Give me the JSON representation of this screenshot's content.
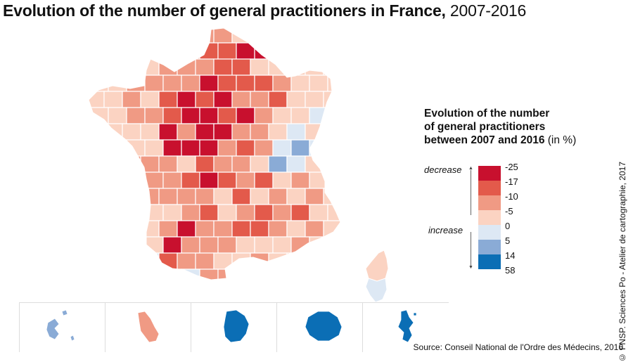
{
  "title": {
    "bold": "Evolution of the number of general practitioners in France,",
    "years": " 2007-2016"
  },
  "legend": {
    "title_line1": "Evolution of the number",
    "title_line2": "of general practitioners",
    "title_line3": "between 2007 and 2016",
    "unit": " (in %)",
    "decrease_label": "decrease",
    "increase_label": "increase",
    "classes": [
      {
        "label": "-25",
        "color": "#c8102e"
      },
      {
        "label": "-17",
        "color": "#e35a4b"
      },
      {
        "label": "-10",
        "color": "#f09a84"
      },
      {
        "label": "-5",
        "color": "#fbd3c2"
      },
      {
        "label": "0",
        "color": "#dde8f4"
      },
      {
        "label": "5",
        "color": "#8aabd6"
      },
      {
        "label": "14",
        "color": "#0b6eb5"
      },
      {
        "label": "58",
        "color": ""
      }
    ]
  },
  "insets": [
    {
      "name": "guadeloupe",
      "color": "#8aabd6"
    },
    {
      "name": "martinique",
      "color": "#f09a84"
    },
    {
      "name": "guyane",
      "color": "#0b6eb5"
    },
    {
      "name": "reunion",
      "color": "#0b6eb5"
    },
    {
      "name": "mayotte",
      "color": "#0b6eb5"
    }
  ],
  "credit": "© FNSP. Sciences Po - Atelier de cartographie, 2017",
  "source": "Source: Conseil National de l'Ordre des Médecins, 2016"
}
